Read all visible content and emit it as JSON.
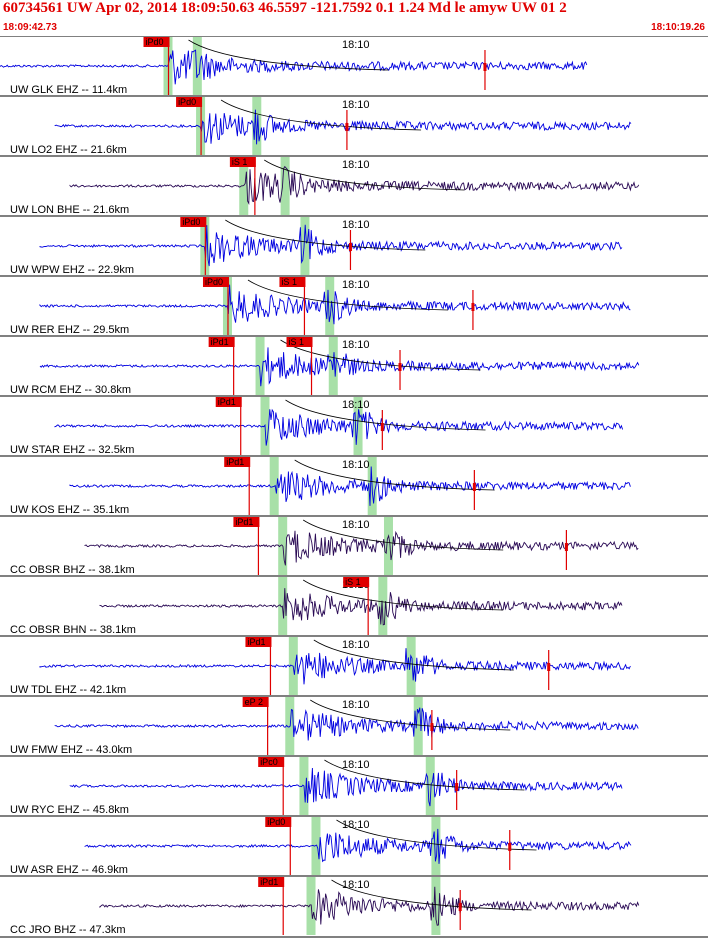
{
  "header": {
    "title": "60734561 UW Apr 02, 2014 18:09:50.63   46.5597 -121.7592  0.1 1.24 Md le amyw UW 01   2",
    "start_time": "18:09:42.73",
    "end_time": "18:10:19.26"
  },
  "minute_label": "18:10",
  "colors": {
    "trace_blue": "#0000e0",
    "trace_dark": "#2a0a55",
    "pick_red": "#e00000",
    "window_green": "#a8e0a8"
  },
  "traces": [
    {
      "label": "UW GLK EHZ -- 11.4km",
      "dark": false,
      "p": 0.238,
      "s": 0.278,
      "picks": [
        {
          "text": "iPd0",
          "t": 0.238
        }
      ],
      "code": 0.685
    },
    {
      "label": "UW LO2 EHZ -- 21.6km",
      "dark": false,
      "p": 0.284,
      "s": 0.362,
      "picks": [
        {
          "text": "iPd0",
          "t": 0.284
        }
      ],
      "code": 0.49
    },
    {
      "label": "UW LON BHE -- 21.6km",
      "dark": true,
      "p": 0.345,
      "s": 0.402,
      "picks": [
        {
          "text": "iS 1",
          "t": 0.36
        }
      ],
      "code": null
    },
    {
      "label": "UW WPW EHZ -- 22.9km",
      "dark": false,
      "p": 0.29,
      "s": 0.43,
      "picks": [
        {
          "text": "iPd0",
          "t": 0.29
        }
      ],
      "code": 0.495
    },
    {
      "label": "UW RER EHZ -- 29.5km",
      "dark": false,
      "p": 0.322,
      "s": 0.465,
      "picks": [
        {
          "text": "iPd0",
          "t": 0.322
        },
        {
          "text": "iS 1",
          "t": 0.43
        }
      ],
      "code": 0.668
    },
    {
      "label": "UW RCM EHZ -- 30.8km",
      "dark": false,
      "p": 0.368,
      "s": 0.47,
      "picks": [
        {
          "text": "iPd1",
          "t": 0.33
        },
        {
          "text": "iS 1",
          "t": 0.44
        }
      ],
      "code": 0.565
    },
    {
      "label": "UW STAR EHZ -- 32.5km",
      "dark": false,
      "p": 0.375,
      "s": 0.505,
      "picks": [
        {
          "text": "iPd1",
          "t": 0.34
        }
      ],
      "code": 0.54
    },
    {
      "label": "UW KOS EHZ -- 35.1km",
      "dark": false,
      "p": 0.388,
      "s": 0.525,
      "picks": [
        {
          "text": "iPd1",
          "t": 0.352
        }
      ],
      "code": 0.67
    },
    {
      "label": "CC OBSR BHZ -- 38.1km",
      "dark": true,
      "p": 0.4,
      "s": 0.548,
      "picks": [
        {
          "text": "iPd1",
          "t": 0.365
        }
      ],
      "code": 0.8
    },
    {
      "label": "CC OBSR BHN -- 38.1km",
      "dark": true,
      "p": 0.4,
      "s": 0.54,
      "picks": [
        {
          "text": "iS 1",
          "t": 0.52
        }
      ],
      "code": null
    },
    {
      "label": "UW TDL EHZ -- 42.1km",
      "dark": false,
      "p": 0.415,
      "s": 0.58,
      "picks": [
        {
          "text": "iPd1",
          "t": 0.382
        }
      ],
      "code": 0.775
    },
    {
      "label": "UW FMW EHZ -- 43.0km",
      "dark": false,
      "p": 0.41,
      "s": 0.59,
      "picks": [
        {
          "text": "eP 2",
          "t": 0.378
        }
      ],
      "code": 0.61
    },
    {
      "label": "UW RYC EHZ -- 45.8km",
      "dark": false,
      "p": 0.43,
      "s": 0.607,
      "picks": [
        {
          "text": "iPc0",
          "t": 0.4
        }
      ],
      "code": 0.645
    },
    {
      "label": "UW ASR EHZ -- 46.9km",
      "dark": false,
      "p": 0.447,
      "s": 0.615,
      "picks": [
        {
          "text": "iPd0",
          "t": 0.41
        }
      ],
      "code": 0.72
    },
    {
      "label": "CC JRO BHZ -- 47.3km",
      "dark": true,
      "p": 0.44,
      "s": 0.615,
      "picks": [
        {
          "text": "iPd1",
          "t": 0.4
        }
      ],
      "code": 0.65
    }
  ]
}
